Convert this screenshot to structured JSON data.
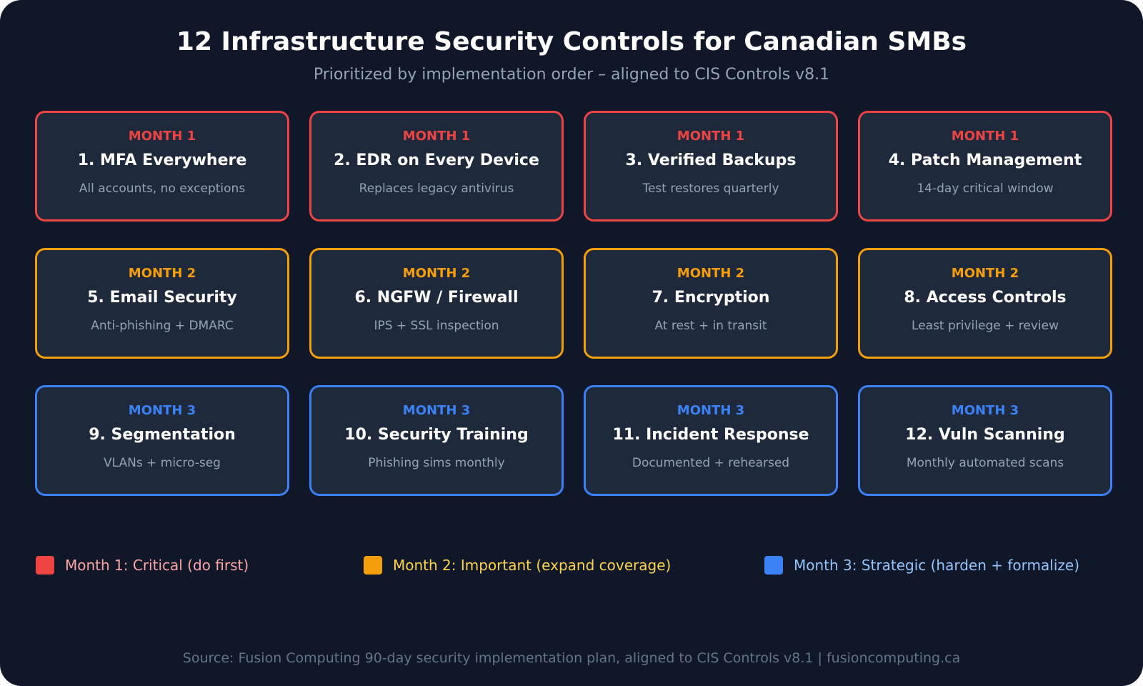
{
  "header": {
    "title": "12 Infrastructure Security Controls for Canadian SMBs",
    "subtitle": "Prioritized by implementation order – aligned to CIS Controls v8.1"
  },
  "rows": [
    {
      "color": "#ef4444",
      "legend": "Month 1: Critical (do first)",
      "legend_color": "#fca5a5",
      "cards": [
        {
          "month": "MONTH 1",
          "title": "1. MFA Everywhere",
          "desc": "All accounts, no exceptions"
        },
        {
          "month": "MONTH 1",
          "title": "2. EDR on Every Device",
          "desc": "Replaces legacy antivirus"
        },
        {
          "month": "MONTH 1",
          "title": "3. Verified Backups",
          "desc": "Test restores quarterly"
        },
        {
          "month": "MONTH 1",
          "title": "4. Patch Management",
          "desc": "14-day critical window"
        }
      ]
    },
    {
      "color": "#f59e0b",
      "legend": "Month 2: Important (expand coverage)",
      "legend_color": "#fcd34d",
      "cards": [
        {
          "month": "MONTH 2",
          "title": "5. Email Security",
          "desc": "Anti-phishing + DMARC"
        },
        {
          "month": "MONTH 2",
          "title": "6. NGFW / Firewall",
          "desc": "IPS + SSL inspection"
        },
        {
          "month": "MONTH 2",
          "title": "7. Encryption",
          "desc": "At rest + in transit"
        },
        {
          "month": "MONTH 2",
          "title": "8. Access Controls",
          "desc": "Least privilege + review"
        }
      ]
    },
    {
      "color": "#3b82f6",
      "legend": "Month 3: Strategic (harden + formalize)",
      "legend_color": "#93c5fd",
      "cards": [
        {
          "month": "MONTH 3",
          "title": "9. Segmentation",
          "desc": "VLANs + micro-seg"
        },
        {
          "month": "MONTH 3",
          "title": "10. Security Training",
          "desc": "Phishing sims monthly"
        },
        {
          "month": "MONTH 3",
          "title": "11. Incident Response",
          "desc": "Documented + rehearsed"
        },
        {
          "month": "MONTH 3",
          "title": "12. Vuln Scanning",
          "desc": "Monthly automated scans"
        }
      ]
    }
  ],
  "footer": {
    "source": "Source: Fusion Computing 90-day security implementation plan, aligned to CIS Controls v8.1 | fusioncomputing.ca"
  }
}
